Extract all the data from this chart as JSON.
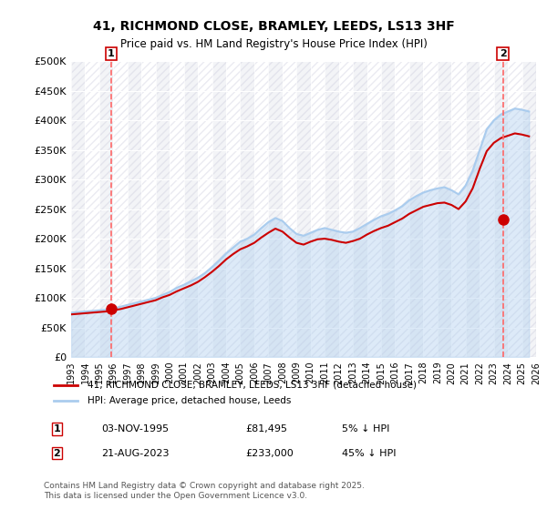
{
  "title_line1": "41, RICHMOND CLOSE, BRAMLEY, LEEDS, LS13 3HF",
  "title_line2": "Price paid vs. HM Land Registry's House Price Index (HPI)",
  "ylabel": "",
  "xlim_years": [
    1993,
    2026
  ],
  "ylim": [
    0,
    500000
  ],
  "yticks": [
    0,
    50000,
    100000,
    150000,
    200000,
    250000,
    300000,
    350000,
    400000,
    450000,
    500000
  ],
  "ytick_labels": [
    "£0",
    "£50K",
    "£100K",
    "£150K",
    "£200K",
    "£250K",
    "£300K",
    "£350K",
    "£400K",
    "£450K",
    "£500K"
  ],
  "xtick_years": [
    1993,
    1994,
    1995,
    1996,
    1997,
    1998,
    1999,
    2000,
    2001,
    2002,
    2003,
    2004,
    2005,
    2006,
    2007,
    2008,
    2009,
    2010,
    2011,
    2012,
    2013,
    2014,
    2015,
    2016,
    2017,
    2018,
    2019,
    2020,
    2021,
    2022,
    2023,
    2024,
    2025,
    2026
  ],
  "hpi_color": "#aaccee",
  "price_color": "#cc0000",
  "dashed_line_color": "#ff6666",
  "background_hatch_color": "#e8e8f0",
  "legend_label_price": "41, RICHMOND CLOSE, BRAMLEY, LEEDS, LS13 3HF (detached house)",
  "legend_label_hpi": "HPI: Average price, detached house, Leeds",
  "transaction1_label": "1",
  "transaction1_date": "03-NOV-1995",
  "transaction1_price": "£81,495",
  "transaction1_note": "5% ↓ HPI",
  "transaction2_label": "2",
  "transaction2_date": "21-AUG-2023",
  "transaction2_price": "£233,000",
  "transaction2_note": "45% ↓ HPI",
  "footer": "Contains HM Land Registry data © Crown copyright and database right 2025.\nThis data is licensed under the Open Government Licence v3.0.",
  "transaction1_year": 1995.84,
  "transaction2_year": 2023.64,
  "transaction1_value": 81495,
  "transaction2_value": 233000,
  "hpi_years": [
    1993,
    1993.5,
    1994,
    1994.5,
    1995,
    1995.5,
    1996,
    1996.5,
    1997,
    1997.5,
    1998,
    1998.5,
    1999,
    1999.5,
    2000,
    2000.5,
    2001,
    2001.5,
    2002,
    2002.5,
    2003,
    2003.5,
    2004,
    2004.5,
    2005,
    2005.5,
    2006,
    2006.5,
    2007,
    2007.5,
    2008,
    2008.5,
    2009,
    2009.5,
    2010,
    2010.5,
    2011,
    2011.5,
    2012,
    2012.5,
    2013,
    2013.5,
    2014,
    2014.5,
    2015,
    2015.5,
    2016,
    2016.5,
    2017,
    2017.5,
    2018,
    2018.5,
    2019,
    2019.5,
    2020,
    2020.5,
    2021,
    2021.5,
    2022,
    2022.5,
    2023,
    2023.5,
    2024,
    2024.5,
    2025,
    2025.5
  ],
  "hpi_values": [
    75000,
    76000,
    77000,
    78000,
    79000,
    80000,
    82000,
    85000,
    88000,
    91000,
    94000,
    97000,
    100000,
    105000,
    110000,
    117000,
    122000,
    128000,
    134000,
    142000,
    152000,
    163000,
    175000,
    185000,
    195000,
    200000,
    207000,
    218000,
    228000,
    235000,
    230000,
    218000,
    208000,
    205000,
    210000,
    215000,
    218000,
    215000,
    212000,
    210000,
    212000,
    218000,
    225000,
    232000,
    238000,
    242000,
    248000,
    255000,
    265000,
    272000,
    278000,
    282000,
    285000,
    287000,
    282000,
    275000,
    290000,
    315000,
    350000,
    385000,
    400000,
    410000,
    415000,
    420000,
    418000,
    415000
  ],
  "price_years": [
    1993,
    1993.5,
    1994,
    1994.5,
    1995,
    1995.5,
    1996,
    1996.5,
    1997,
    1997.5,
    1998,
    1998.5,
    1999,
    1999.5,
    2000,
    2000.5,
    2001,
    2001.5,
    2002,
    2002.5,
    2003,
    2003.5,
    2004,
    2004.5,
    2005,
    2005.5,
    2006,
    2006.5,
    2007,
    2007.5,
    2008,
    2008.5,
    2009,
    2009.5,
    2010,
    2010.5,
    2011,
    2011.5,
    2012,
    2012.5,
    2013,
    2013.5,
    2014,
    2014.5,
    2015,
    2015.5,
    2016,
    2016.5,
    2017,
    2017.5,
    2018,
    2018.5,
    2019,
    2019.5,
    2020,
    2020.5,
    2021,
    2021.5,
    2022,
    2022.5,
    2023,
    2023.5,
    2024,
    2024.5,
    2025,
    2025.5
  ],
  "price_values": [
    72000,
    73000,
    74000,
    75000,
    76000,
    77000,
    79000,
    81000,
    84000,
    87000,
    90000,
    93000,
    96000,
    101000,
    105000,
    111000,
    116000,
    121000,
    127000,
    135000,
    144000,
    154000,
    165000,
    174000,
    182000,
    187000,
    193000,
    202000,
    210000,
    217000,
    212000,
    202000,
    193000,
    190000,
    195000,
    199000,
    200000,
    198000,
    195000,
    193000,
    196000,
    200000,
    207000,
    213000,
    218000,
    222000,
    228000,
    234000,
    242000,
    248000,
    254000,
    257000,
    260000,
    261000,
    257000,
    250000,
    263000,
    285000,
    318000,
    348000,
    362000,
    370000,
    374000,
    378000,
    376000,
    373000
  ]
}
